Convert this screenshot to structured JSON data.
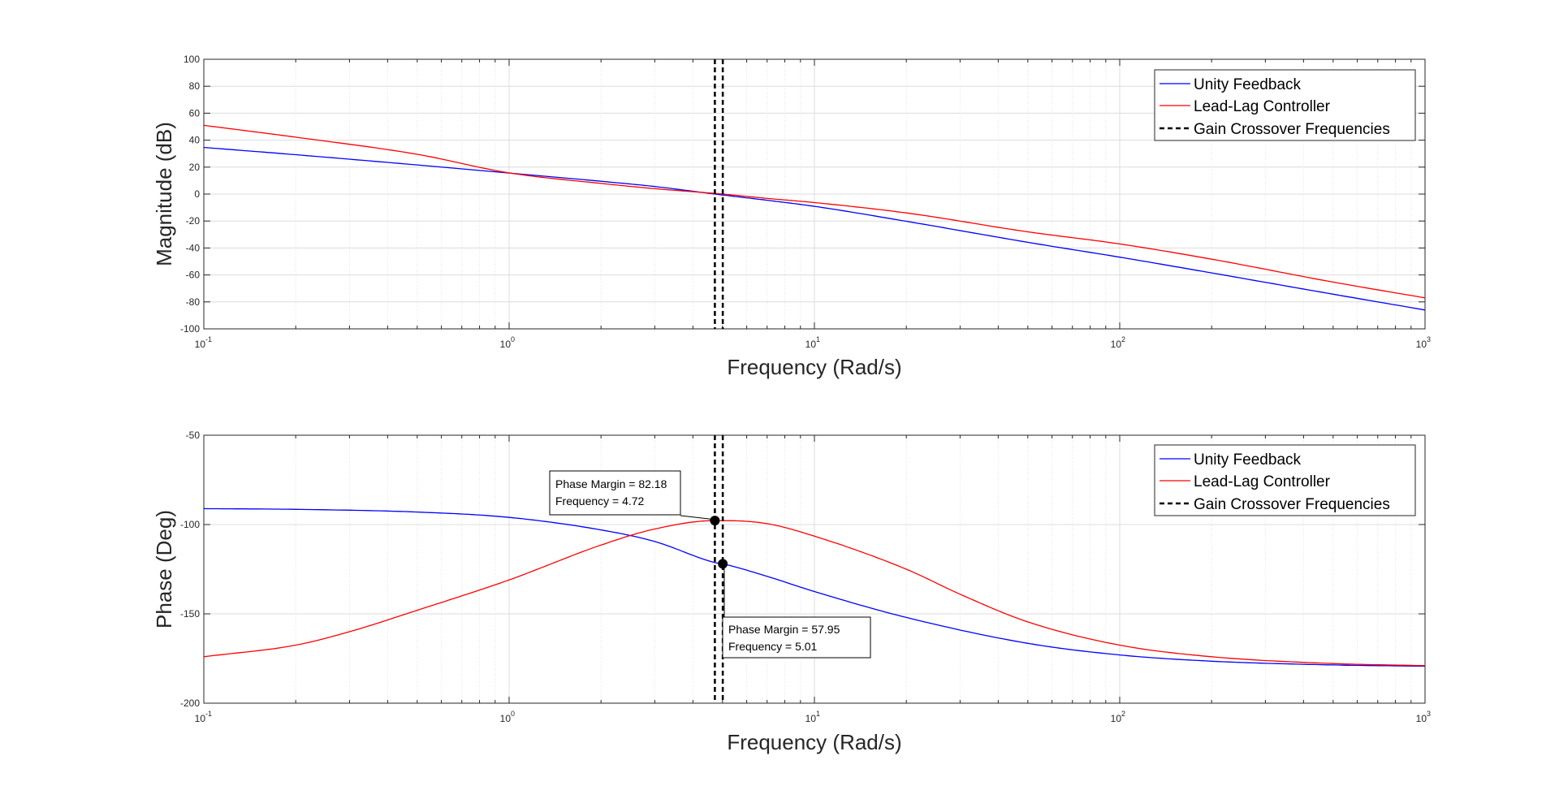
{
  "chart_data": [
    {
      "type": "line",
      "xscale": "log",
      "xlim": [
        0.1,
        1000
      ],
      "ylim": [
        -100,
        100
      ],
      "xticks": [
        0.1,
        1,
        10,
        100,
        1000
      ],
      "xtick_labels": [
        {
          "base": "10",
          "exp": "-1"
        },
        {
          "base": "10",
          "exp": "0"
        },
        {
          "base": "10",
          "exp": "1"
        },
        {
          "base": "10",
          "exp": "2"
        },
        {
          "base": "10",
          "exp": "3"
        }
      ],
      "yticks": [
        100,
        80,
        60,
        40,
        20,
        0,
        -20,
        -40,
        -60,
        -80,
        -100
      ],
      "ytick_labels": [
        "100",
        "80",
        "60",
        "40",
        "20",
        "0",
        "-20",
        "-40",
        "-60",
        "-80",
        "-100"
      ],
      "xlabel": "Frequency (Rad/s)",
      "ylabel": "Magnitude (dB)",
      "grid": true,
      "legend_position": "top-right",
      "series": [
        {
          "name": "Unity Feedback",
          "color": "#0000ff",
          "x": [
            0.1,
            0.2,
            0.5,
            1,
            2,
            3,
            4.72,
            7,
            10,
            20,
            50,
            100,
            200,
            500,
            1000
          ],
          "y": [
            34.6,
            29.2,
            21.6,
            15.6,
            9.5,
            5.6,
            0.0,
            -4.6,
            -9.1,
            -20.2,
            -35.8,
            -46.8,
            -58.5,
            -74.3,
            -86.0
          ]
        },
        {
          "name": "Lead-Lag Controller",
          "color": "#ff0000",
          "x": [
            0.1,
            0.2,
            0.5,
            1,
            2,
            3,
            5.01,
            7,
            10,
            20,
            50,
            100,
            200,
            500,
            1000
          ],
          "y": [
            51.0,
            42.2,
            29.5,
            15.7,
            7.9,
            4.0,
            0.0,
            -3.2,
            -6.3,
            -14.0,
            -28.0,
            -37.0,
            -48.3,
            -65.3,
            -77.0
          ]
        },
        {
          "name": "Gain Crossover Frequencies",
          "color": "#000000",
          "style": "dashed",
          "vlines": [
            4.72,
            5.01
          ]
        }
      ]
    },
    {
      "type": "line",
      "xscale": "log",
      "xlim": [
        0.1,
        1000
      ],
      "ylim": [
        -200,
        -50
      ],
      "xticks": [
        0.1,
        1,
        10,
        100,
        1000
      ],
      "xtick_labels": [
        {
          "base": "10",
          "exp": "-1"
        },
        {
          "base": "10",
          "exp": "0"
        },
        {
          "base": "10",
          "exp": "1"
        },
        {
          "base": "10",
          "exp": "2"
        },
        {
          "base": "10",
          "exp": "3"
        }
      ],
      "yticks": [
        -50,
        -100,
        -150,
        -200
      ],
      "ytick_labels": [
        "-50",
        "-100",
        "-150",
        "-200"
      ],
      "xlabel": "Frequency (Rad/s)",
      "ylabel": "Phase (Deg)",
      "grid": true,
      "legend_position": "top-right",
      "series": [
        {
          "name": "Unity Feedback",
          "color": "#0000ff",
          "x": [
            0.1,
            0.2,
            0.5,
            1,
            2,
            3,
            4.72,
            5.01,
            7,
            10,
            20,
            50,
            100,
            200,
            500,
            1000
          ],
          "y": [
            -91.1,
            -91.5,
            -93.0,
            -96.0,
            -103.0,
            -109.5,
            -121.3,
            -122.0,
            -129.0,
            -137.5,
            -152.0,
            -166.5,
            -173.0,
            -176.5,
            -178.6,
            -179.3
          ]
        },
        {
          "name": "Lead-Lag Controller",
          "color": "#ff0000",
          "x": [
            0.1,
            0.2,
            0.3,
            0.5,
            1,
            2,
            3,
            4.72,
            5.01,
            7,
            10,
            20,
            30,
            50,
            100,
            200,
            500,
            1000
          ],
          "y": [
            -174.0,
            -167.5,
            -160.0,
            -148.0,
            -131.0,
            -111.5,
            -102.5,
            -97.8,
            -97.8,
            -99.5,
            -106.5,
            -125.0,
            -139.0,
            -154.5,
            -167.5,
            -174.0,
            -177.8,
            -179.0
          ]
        },
        {
          "name": "Gain Crossover Frequencies",
          "color": "#000000",
          "style": "dashed",
          "vlines": [
            4.72,
            5.01
          ]
        }
      ],
      "markers": [
        {
          "x": 4.72,
          "y": -97.8
        },
        {
          "x": 5.01,
          "y": -122.0
        }
      ],
      "annotations": [
        {
          "line1": "Phase Margin = 82.18",
          "line2": "Frequency = 4.72"
        },
        {
          "line1": "Phase Margin = 57.95",
          "line2": "Frequency = 5.01"
        }
      ]
    }
  ]
}
